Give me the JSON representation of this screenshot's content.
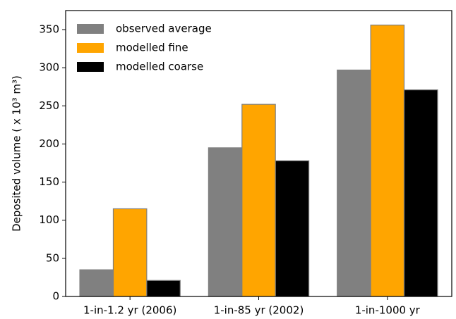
{
  "chart_data": {
    "type": "bar",
    "y_label": "Deposited volume ( x 10³ m³)",
    "categories": [
      "1-in-1.2 yr (2006)",
      "1-in-85 yr (2002)",
      "1-in-1000 yr"
    ],
    "series": [
      {
        "name": "observed average",
        "color": "#808080",
        "values": [
          35,
          195,
          297
        ]
      },
      {
        "name": "modelled fine",
        "color": "#ffa500",
        "values": [
          115,
          252,
          356
        ]
      },
      {
        "name": "modelled coarse",
        "color": "#000000",
        "values": [
          21,
          178,
          271
        ]
      }
    ],
    "ylim": [
      0,
      375
    ],
    "yticks": [
      0,
      50,
      100,
      150,
      200,
      250,
      300,
      350
    ],
    "legend": "upper left",
    "grid": false
  }
}
